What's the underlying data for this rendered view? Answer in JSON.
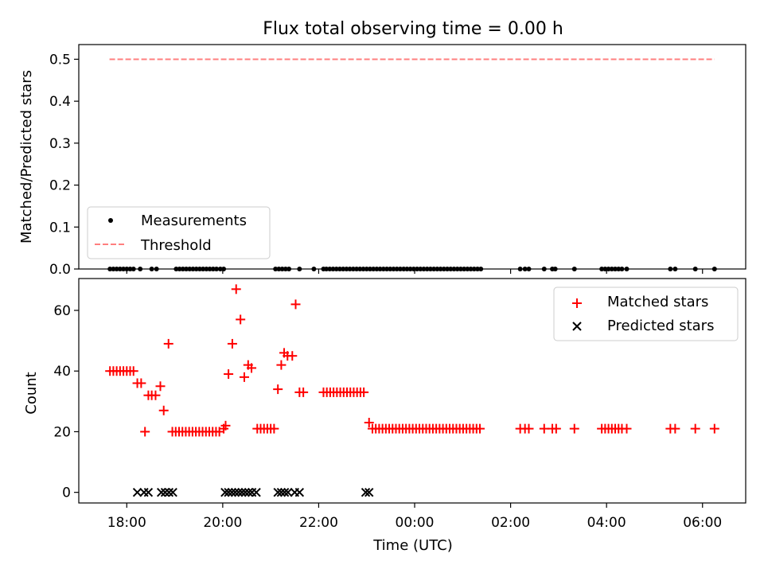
{
  "chart_data": [
    {
      "type": "line",
      "title": "Flux total observing time = 0.00 h",
      "ylabel": "Matched/Predicted stars",
      "xlabel": "",
      "xlim_hours": [
        17.0,
        30.9
      ],
      "ylim": [
        0.0,
        0.535
      ],
      "yticks": [
        0.0,
        0.1,
        0.2,
        0.3,
        0.4,
        0.5
      ],
      "ytick_labels": [
        "0.0",
        "0.1",
        "0.2",
        "0.3",
        "0.4",
        "0.5"
      ],
      "xticks_hours": [
        18,
        20,
        22,
        24,
        26,
        28,
        30
      ],
      "legend": {
        "position": "lower-left",
        "entries": [
          "Measurements",
          "Threshold"
        ]
      },
      "threshold": {
        "name": "Threshold",
        "value": 0.5,
        "x_range_hours": [
          17.64,
          30.25
        ],
        "color": "#ff7f7f",
        "style": "dashed"
      },
      "measurements": {
        "name": "Measurements",
        "color": "#000000",
        "y_value": 0.0,
        "x_hours": [
          17.65,
          17.72,
          17.79,
          17.86,
          17.93,
          18.0,
          18.07,
          18.14,
          18.28,
          18.52,
          18.62,
          19.03,
          19.1,
          19.17,
          19.24,
          19.31,
          19.38,
          19.45,
          19.52,
          19.59,
          19.66,
          19.73,
          19.8,
          19.87,
          19.95,
          20.02,
          21.1,
          21.17,
          21.24,
          21.31,
          21.38,
          21.6,
          21.9,
          22.1,
          22.16,
          22.23,
          22.3,
          22.37,
          22.44,
          22.51,
          22.58,
          22.65,
          22.72,
          22.79,
          22.86,
          22.93,
          23.0,
          23.07,
          23.14,
          23.21,
          23.28,
          23.35,
          23.42,
          23.49,
          23.56,
          23.63,
          23.7,
          23.77,
          23.84,
          23.91,
          23.98,
          24.05,
          24.12,
          24.19,
          24.26,
          24.33,
          24.4,
          24.47,
          24.54,
          24.61,
          24.68,
          24.75,
          24.82,
          24.89,
          24.96,
          25.03,
          25.1,
          25.17,
          25.24,
          25.31,
          25.38,
          26.2,
          26.3,
          26.38,
          26.7,
          26.87,
          26.93,
          27.33,
          27.9,
          27.97,
          28.04,
          28.11,
          28.18,
          28.25,
          28.32,
          28.42,
          29.33,
          29.43,
          29.85,
          30.25
        ]
      }
    },
    {
      "type": "scatter",
      "xlabel": "Time (UTC)",
      "ylabel": "Count",
      "xlim_hours": [
        17.0,
        30.9
      ],
      "ylim": [
        -3.5,
        70.5
      ],
      "yticks": [
        0,
        20,
        40,
        60
      ],
      "ytick_labels": [
        "0",
        "20",
        "40",
        "60"
      ],
      "xticks_hours": [
        18,
        20,
        22,
        24,
        26,
        28,
        30
      ],
      "xtick_labels": [
        "18:00",
        "20:00",
        "22:00",
        "00:00",
        "02:00",
        "04:00",
        "06:00"
      ],
      "legend": {
        "position": "top-right",
        "entries": [
          "Matched stars",
          "Predicted stars"
        ]
      },
      "series": [
        {
          "name": "Matched stars",
          "marker": "plus",
          "color": "#ff0000",
          "points": [
            [
              17.65,
              40
            ],
            [
              17.72,
              40
            ],
            [
              17.79,
              40
            ],
            [
              17.86,
              40
            ],
            [
              17.93,
              40
            ],
            [
              18.0,
              40
            ],
            [
              18.07,
              40
            ],
            [
              18.14,
              40
            ],
            [
              18.22,
              36
            ],
            [
              18.3,
              36
            ],
            [
              18.38,
              20
            ],
            [
              18.45,
              32
            ],
            [
              18.52,
              32
            ],
            [
              18.6,
              32
            ],
            [
              18.7,
              35
            ],
            [
              18.77,
              27
            ],
            [
              18.87,
              49
            ],
            [
              18.95,
              20
            ],
            [
              19.02,
              20
            ],
            [
              19.09,
              20
            ],
            [
              19.16,
              20
            ],
            [
              19.23,
              20
            ],
            [
              19.3,
              20
            ],
            [
              19.37,
              20
            ],
            [
              19.44,
              20
            ],
            [
              19.51,
              20
            ],
            [
              19.58,
              20
            ],
            [
              19.65,
              20
            ],
            [
              19.72,
              20
            ],
            [
              19.79,
              20
            ],
            [
              19.86,
              20
            ],
            [
              19.93,
              20
            ],
            [
              20.02,
              21
            ],
            [
              20.06,
              22
            ],
            [
              20.12,
              39
            ],
            [
              20.2,
              49
            ],
            [
              20.28,
              67
            ],
            [
              20.37,
              57
            ],
            [
              20.45,
              38
            ],
            [
              20.53,
              42
            ],
            [
              20.6,
              41
            ],
            [
              20.72,
              21
            ],
            [
              20.79,
              21
            ],
            [
              20.86,
              21
            ],
            [
              20.93,
              21
            ],
            [
              21.0,
              21
            ],
            [
              21.07,
              21
            ],
            [
              21.15,
              34
            ],
            [
              21.22,
              42
            ],
            [
              21.28,
              46
            ],
            [
              21.35,
              45
            ],
            [
              21.45,
              45
            ],
            [
              21.52,
              62
            ],
            [
              21.6,
              33
            ],
            [
              21.68,
              33
            ],
            [
              22.1,
              33
            ],
            [
              22.17,
              33
            ],
            [
              22.24,
              33
            ],
            [
              22.31,
              33
            ],
            [
              22.38,
              33
            ],
            [
              22.45,
              33
            ],
            [
              22.52,
              33
            ],
            [
              22.59,
              33
            ],
            [
              22.66,
              33
            ],
            [
              22.73,
              33
            ],
            [
              22.8,
              33
            ],
            [
              22.87,
              33
            ],
            [
              22.94,
              33
            ],
            [
              23.05,
              23
            ],
            [
              23.12,
              21
            ],
            [
              23.19,
              21
            ],
            [
              23.26,
              21
            ],
            [
              23.33,
              21
            ],
            [
              23.4,
              21
            ],
            [
              23.47,
              21
            ],
            [
              23.54,
              21
            ],
            [
              23.61,
              21
            ],
            [
              23.68,
              21
            ],
            [
              23.75,
              21
            ],
            [
              23.82,
              21
            ],
            [
              23.89,
              21
            ],
            [
              23.96,
              21
            ],
            [
              24.03,
              21
            ],
            [
              24.1,
              21
            ],
            [
              24.17,
              21
            ],
            [
              24.24,
              21
            ],
            [
              24.31,
              21
            ],
            [
              24.38,
              21
            ],
            [
              24.45,
              21
            ],
            [
              24.52,
              21
            ],
            [
              24.59,
              21
            ],
            [
              24.66,
              21
            ],
            [
              24.73,
              21
            ],
            [
              24.8,
              21
            ],
            [
              24.87,
              21
            ],
            [
              24.94,
              21
            ],
            [
              25.01,
              21
            ],
            [
              25.08,
              21
            ],
            [
              25.15,
              21
            ],
            [
              25.22,
              21
            ],
            [
              25.29,
              21
            ],
            [
              25.36,
              21
            ],
            [
              26.2,
              21
            ],
            [
              26.3,
              21
            ],
            [
              26.38,
              21
            ],
            [
              26.7,
              21
            ],
            [
              26.87,
              21
            ],
            [
              26.95,
              21
            ],
            [
              27.33,
              21
            ],
            [
              27.9,
              21
            ],
            [
              27.97,
              21
            ],
            [
              28.04,
              21
            ],
            [
              28.11,
              21
            ],
            [
              28.18,
              21
            ],
            [
              28.25,
              21
            ],
            [
              28.32,
              21
            ],
            [
              28.42,
              21
            ],
            [
              29.33,
              21
            ],
            [
              29.43,
              21
            ],
            [
              29.85,
              21
            ],
            [
              30.25,
              21
            ]
          ]
        },
        {
          "name": "Predicted stars",
          "marker": "x",
          "color": "#000000",
          "points": [
            [
              18.22,
              0
            ],
            [
              18.36,
              0
            ],
            [
              18.45,
              0
            ],
            [
              18.72,
              0
            ],
            [
              18.8,
              0
            ],
            [
              18.88,
              0
            ],
            [
              18.96,
              0
            ],
            [
              20.05,
              0
            ],
            [
              20.12,
              0
            ],
            [
              20.19,
              0
            ],
            [
              20.26,
              0
            ],
            [
              20.33,
              0
            ],
            [
              20.4,
              0
            ],
            [
              20.47,
              0
            ],
            [
              20.54,
              0
            ],
            [
              20.61,
              0
            ],
            [
              20.7,
              0
            ],
            [
              21.15,
              0
            ],
            [
              21.22,
              0
            ],
            [
              21.29,
              0
            ],
            [
              21.36,
              0
            ],
            [
              21.5,
              0
            ],
            [
              21.6,
              0
            ],
            [
              22.98,
              0
            ],
            [
              23.05,
              0
            ]
          ]
        }
      ]
    }
  ]
}
